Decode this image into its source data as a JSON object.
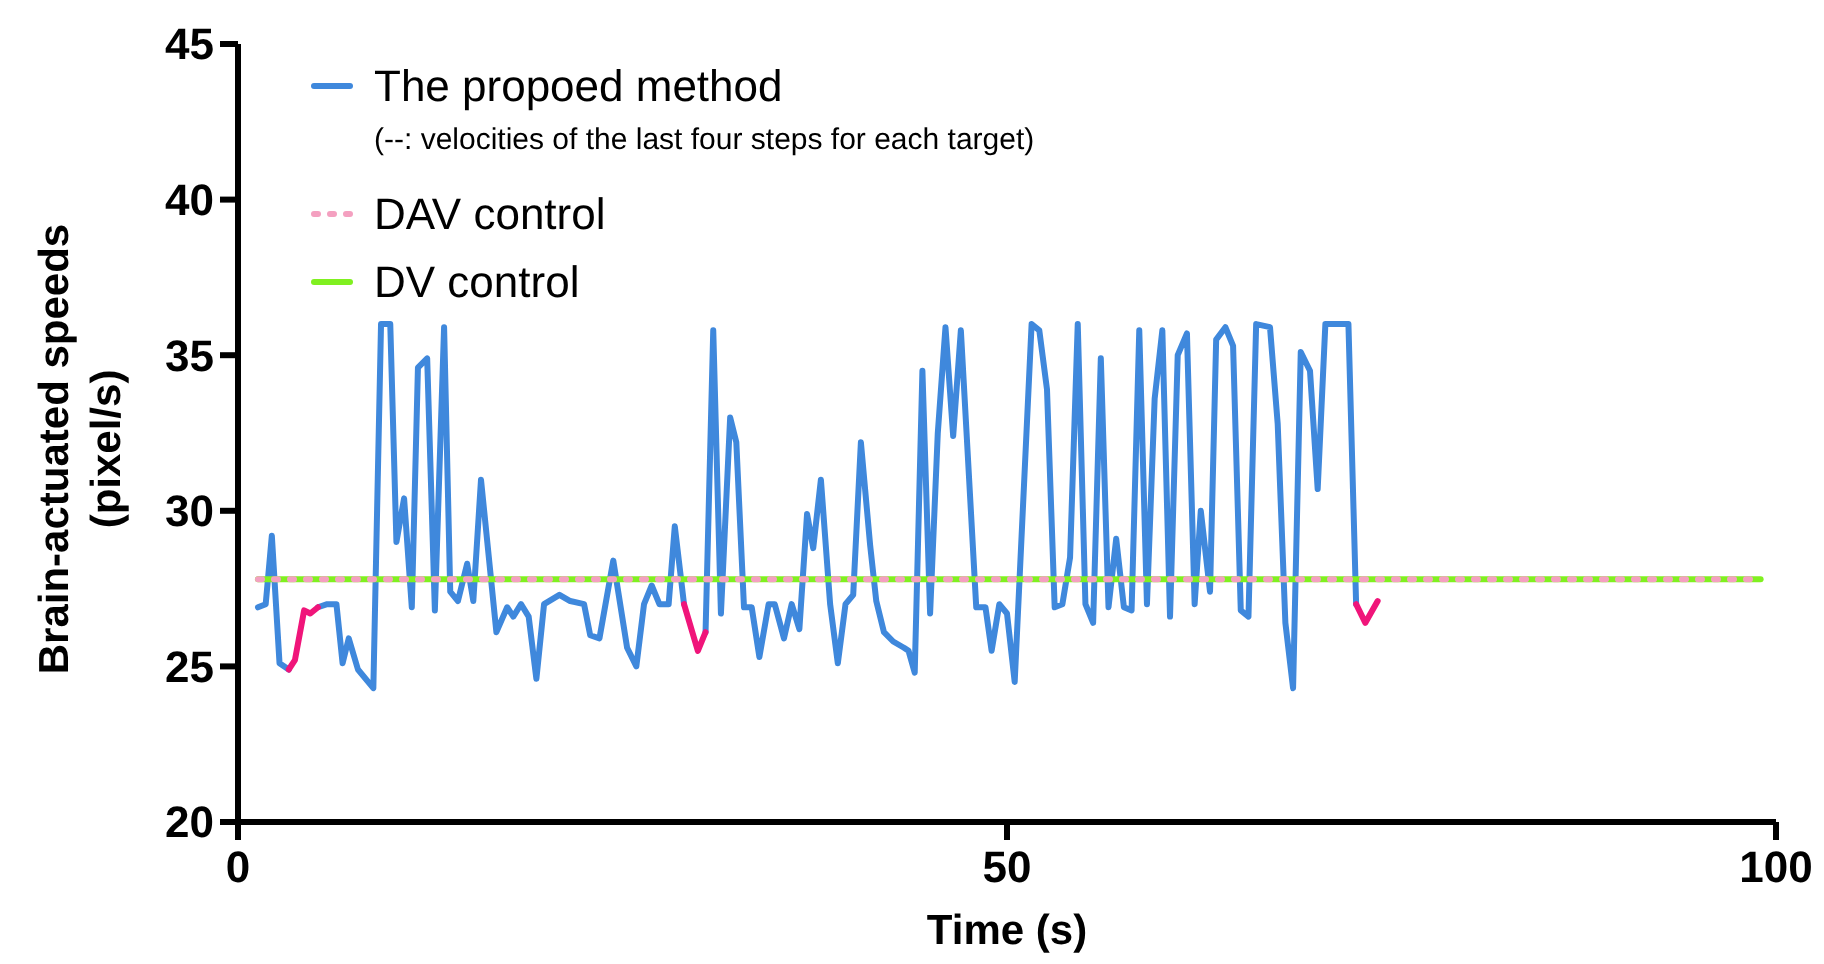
{
  "chart_data": {
    "type": "line",
    "xlabel": "Time (s)",
    "ylabel": "Brain-actuated speeds (pixel/s)",
    "xlim": [
      0,
      100
    ],
    "xticks": [
      0,
      50,
      100
    ],
    "ylim": [
      20,
      45
    ],
    "yticks": [
      20,
      25,
      30,
      35,
      40,
      45
    ],
    "grid": false,
    "legend": "top left",
    "annotations": [
      "(--: velocities of the last four steps for each target)"
    ],
    "series": [
      {
        "name": "The propoed method",
        "color": "#3f88dc",
        "line_style": "solid",
        "x": [
          1.3,
          1.8,
          2.2,
          2.7,
          3.3,
          3.7,
          4.3,
          4.7,
          5.2,
          5.8,
          6.4,
          6.8,
          7.2,
          7.8,
          8.8,
          9.3,
          9.9,
          10.3,
          10.8,
          11.3,
          11.7,
          12.3,
          12.8,
          13.4,
          13.8,
          14.3,
          14.9,
          15.3,
          15.8,
          16.8,
          17.5,
          17.9,
          18.4,
          18.9,
          19.4,
          19.9,
          20.9,
          21.6,
          22.5,
          22.9,
          23.5,
          24.4,
          25.3,
          25.9,
          26.4,
          26.9,
          27.4,
          28.0,
          28.4,
          29.0,
          29.9,
          30.4,
          30.9,
          31.4,
          32.0,
          32.4,
          32.9,
          33.4,
          33.9,
          34.5,
          34.9,
          35.5,
          36.0,
          36.5,
          37.0,
          37.4,
          37.9,
          38.5,
          39.0,
          39.5,
          40.0,
          40.5,
          41.1,
          41.5,
          42.0,
          42.6,
          43.3,
          43.6,
          44.0,
          44.5,
          45.0,
          45.5,
          46.0,
          46.5,
          47.0,
          48.0,
          48.6,
          49.0,
          49.5,
          50.0,
          50.5,
          51.6,
          52.1,
          52.6,
          53.1,
          53.6,
          54.1,
          54.6,
          55.1,
          55.6,
          56.1,
          56.6,
          57.1,
          57.6,
          58.1,
          58.6,
          59.1,
          59.6,
          60.1,
          60.6,
          61.1,
          61.7,
          62.2,
          62.6,
          63.2,
          63.6,
          64.2,
          64.7,
          65.2,
          65.7,
          66.2,
          67.1,
          67.6,
          68.1,
          68.6,
          69.1,
          69.7,
          70.2,
          70.7,
          72.2,
          72.7
        ],
        "values": [
          26.9,
          27.0,
          29.2,
          25.1,
          24.9,
          null,
          null,
          null,
          26.9,
          27.0,
          27.0,
          25.1,
          25.9,
          24.9,
          24.3,
          36.0,
          36.0,
          29.0,
          30.4,
          26.9,
          34.6,
          34.9,
          26.8,
          35.9,
          27.4,
          27.1,
          28.3,
          27.1,
          31.0,
          26.1,
          26.9,
          26.6,
          27.0,
          26.6,
          24.6,
          27.0,
          27.3,
          27.1,
          27.0,
          26.0,
          25.9,
          28.4,
          25.6,
          25.0,
          27.0,
          27.6,
          27.0,
          27.0,
          29.5,
          27.0,
          null,
          26.1,
          35.8,
          26.7,
          33.0,
          32.2,
          26.9,
          26.9,
          25.3,
          27.0,
          27.0,
          25.9,
          27.0,
          26.2,
          29.9,
          28.8,
          31.0,
          27.0,
          25.1,
          27.0,
          27.3,
          32.2,
          28.9,
          27.1,
          26.1,
          25.8,
          25.6,
          25.5,
          24.8,
          34.5,
          26.7,
          32.5,
          35.9,
          32.4,
          35.8,
          26.9,
          26.9,
          25.5,
          27.0,
          26.7,
          24.5,
          36.0,
          35.8,
          33.9,
          26.9,
          27.0,
          28.5,
          36.0,
          27.0,
          26.4,
          34.9,
          26.9,
          29.1,
          26.9,
          26.8,
          35.8,
          27.0,
          33.6,
          35.8,
          26.6,
          35.0,
          35.7,
          27.0,
          30.0,
          27.4,
          35.5,
          35.9,
          35.3,
          26.8,
          26.6,
          36.0,
          35.9,
          32.8,
          26.4,
          24.3,
          35.1,
          34.5,
          30.7,
          36.0,
          36.0,
          27.0
        ]
      },
      {
        "color": "#f0157a",
        "line_style": "solid",
        "x": [
          3.3,
          3.7,
          4.3,
          4.7,
          5.2,
          5.5,
          29.0,
          29.9,
          30.4,
          50.0,
          72.7,
          73.3,
          74.1
        ],
        "values": [
          24.9,
          25.2,
          26.8,
          26.7,
          26.9,
          null,
          27.0,
          25.5,
          26.1,
          null,
          27.0,
          26.4,
          27.1
        ]
      },
      {
        "name": "DAV control",
        "color": "#f4a0c0",
        "line_style": "dotted",
        "x": [
          1.3,
          99
        ],
        "values": [
          27.8,
          27.8
        ]
      },
      {
        "name": "DV control",
        "color": "#80f020",
        "line_style": "solid",
        "x": [
          1.3,
          99
        ],
        "values": [
          27.8,
          27.8
        ]
      }
    ]
  }
}
